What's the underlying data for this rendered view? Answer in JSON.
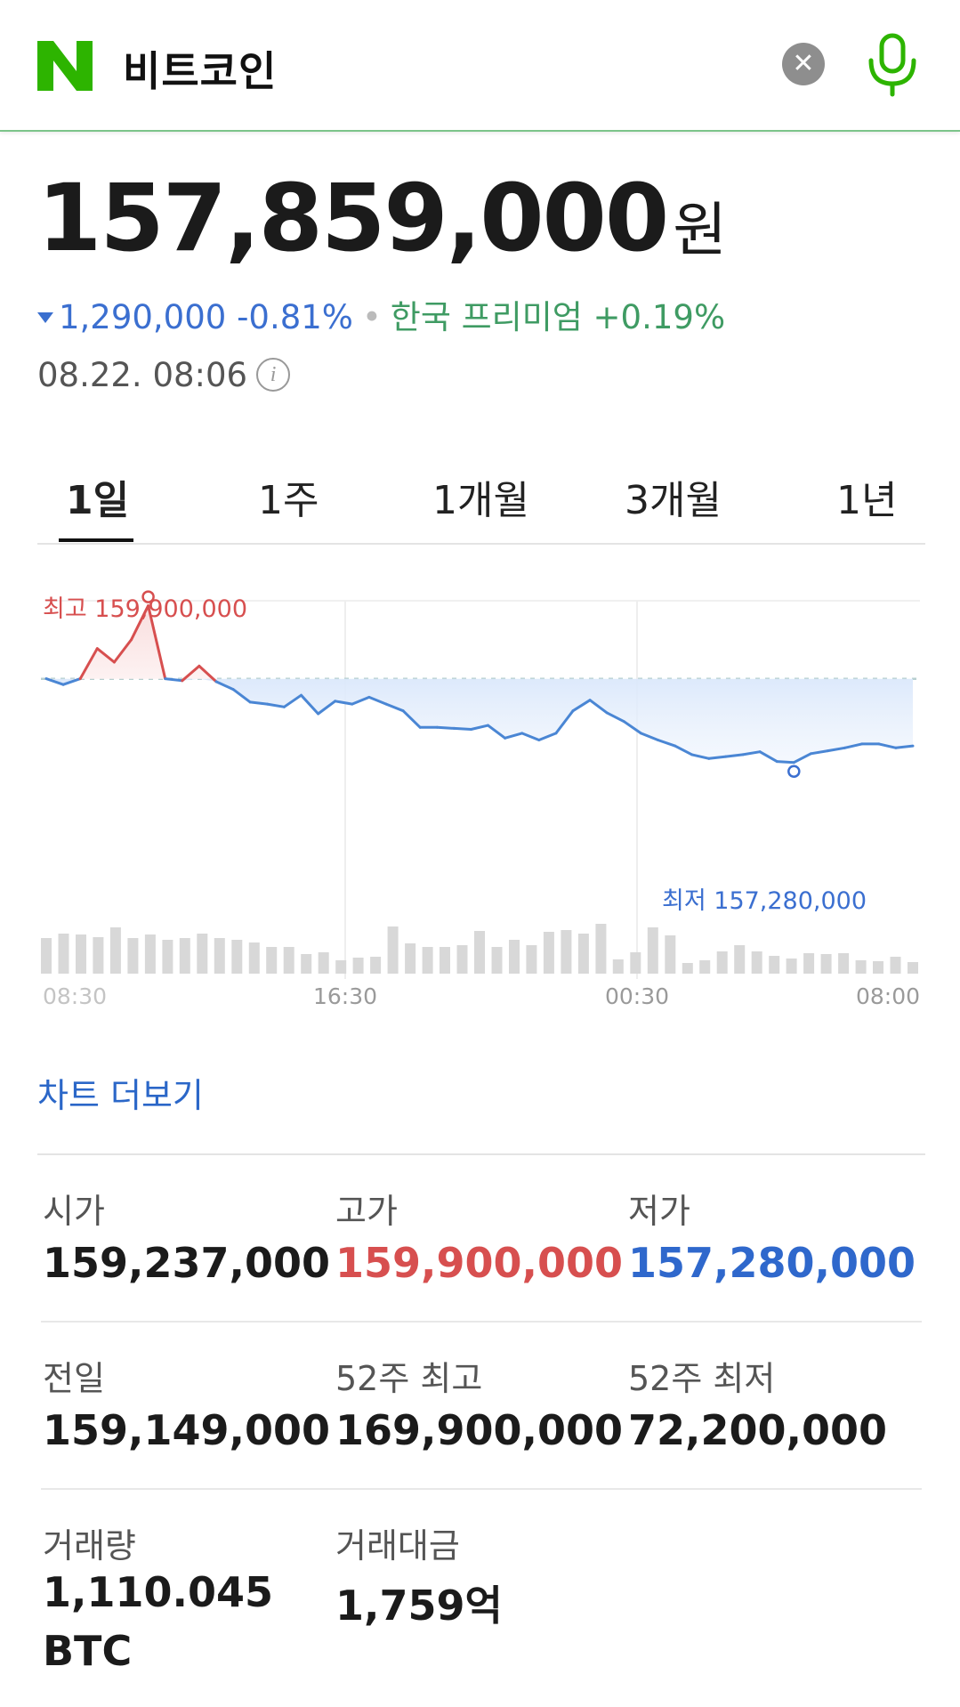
{
  "search": {
    "query": "비트코인",
    "logo_letter": "N",
    "clear_icon": "close-icon",
    "mic_icon": "microphone-icon"
  },
  "quote": {
    "price": "157,859,000",
    "unit": "원",
    "change": "1,290,000 -0.81%",
    "premium": "한국 프리미엄 +0.19%",
    "time": "08.22. 08:06"
  },
  "colors": {
    "down": "#3b6fd0",
    "up": "#d74f4f",
    "premium": "#3f9b63",
    "accent_green": "#2db400"
  },
  "tabs": [
    {
      "label": "1일",
      "active": true
    },
    {
      "label": "1주",
      "active": false
    },
    {
      "label": "1개월",
      "active": false
    },
    {
      "label": "3개월",
      "active": false
    },
    {
      "label": "1년",
      "active": false
    }
  ],
  "chart_data": {
    "type": "line",
    "x_ticks": [
      "08:30",
      "16:30",
      "00:30",
      "08:00"
    ],
    "reference_value": 159149000,
    "high_label": "최고 159,900,000",
    "low_label": "최저 157,280,000",
    "high": 159900000,
    "low": 157280000,
    "series": [
      {
        "values": [
          159150000,
          159090000,
          159150000,
          159460000,
          159320000,
          159550000,
          159900000,
          159150000,
          159130000,
          159280000,
          159120000,
          159040000,
          158910000,
          158890000,
          158860000,
          158980000,
          158790000,
          158920000,
          158890000,
          158960000,
          158890000,
          158820000,
          158650000,
          158650000,
          158640000,
          158630000,
          158670000,
          158540000,
          158590000,
          158520000,
          158590000,
          158820000,
          158930000,
          158800000,
          158710000,
          158590000,
          158520000,
          158460000,
          158370000,
          158330000,
          158350000,
          158370000,
          158400000,
          158300000,
          158290000,
          158380000,
          158410000,
          158440000,
          158480000,
          158480000,
          158440000,
          158460000
        ]
      }
    ],
    "volume": [
      40,
      45,
      44,
      41,
      52,
      40,
      44,
      38,
      40,
      45,
      40,
      38,
      35,
      30,
      30,
      22,
      24,
      15,
      18,
      19,
      53,
      34,
      30,
      30,
      32,
      48,
      30,
      38,
      32,
      47,
      49,
      45,
      56,
      16,
      24,
      52,
      43,
      12,
      15,
      25,
      32,
      25,
      20,
      17,
      23,
      22,
      23,
      15,
      14,
      19,
      13
    ]
  },
  "more_chart": "차트 더보기",
  "stats": [
    {
      "label": "시가",
      "value": "159,237,000",
      "tone": "normal"
    },
    {
      "label": "고가",
      "value": "159,900,000",
      "tone": "up"
    },
    {
      "label": "저가",
      "value": "157,280,000",
      "tone": "down"
    },
    {
      "label": "전일",
      "value": "159,149,000",
      "tone": "normal"
    },
    {
      "label": "52주 최고",
      "value": "169,900,000",
      "tone": "normal"
    },
    {
      "label": "52주 최저",
      "value": "72,200,000",
      "tone": "normal"
    },
    {
      "label": "거래량",
      "value": "1,110.045 BTC",
      "tone": "normal"
    },
    {
      "label": "거래대금",
      "value": "1,759억",
      "tone": "normal"
    }
  ]
}
